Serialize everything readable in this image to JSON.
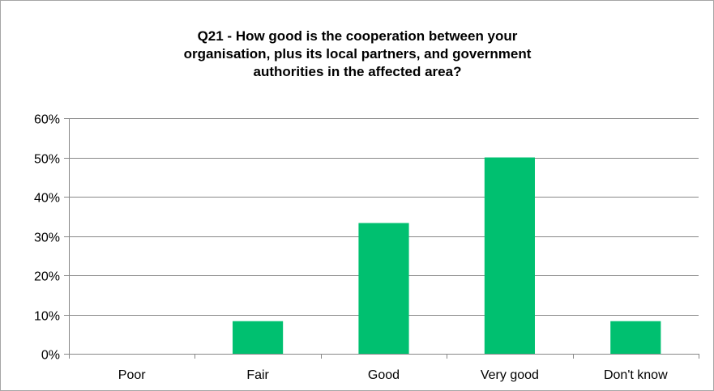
{
  "chart_data": {
    "type": "bar",
    "title_lines": [
      "Q21 - How good is the cooperation between your",
      "organisation, plus its local partners, and government",
      "authorities in the affected area?"
    ],
    "categories": [
      "Poor",
      "Fair",
      "Good",
      "Very good",
      "Don't know"
    ],
    "values": [
      0,
      8.3,
      33.3,
      50,
      8.3
    ],
    "ylim": [
      0,
      60
    ],
    "y_ticks": [
      0,
      10,
      20,
      30,
      40,
      50,
      60
    ],
    "y_tick_labels": [
      "0%",
      "10%",
      "20%",
      "30%",
      "40%",
      "50%",
      "60%"
    ],
    "grid": true,
    "legend": "none",
    "bar_color": "#00c070",
    "grid_color": "#888888"
  }
}
